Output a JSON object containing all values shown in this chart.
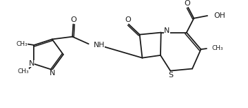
{
  "background_color": "#ffffff",
  "line_color": "#1a1a1a",
  "line_width": 1.3,
  "font_size": 7.5,
  "figsize": [
    3.6,
    1.58
  ],
  "dpi": 100,
  "xlim": [
    0,
    9.0
  ],
  "ylim": [
    0,
    3.95
  ]
}
